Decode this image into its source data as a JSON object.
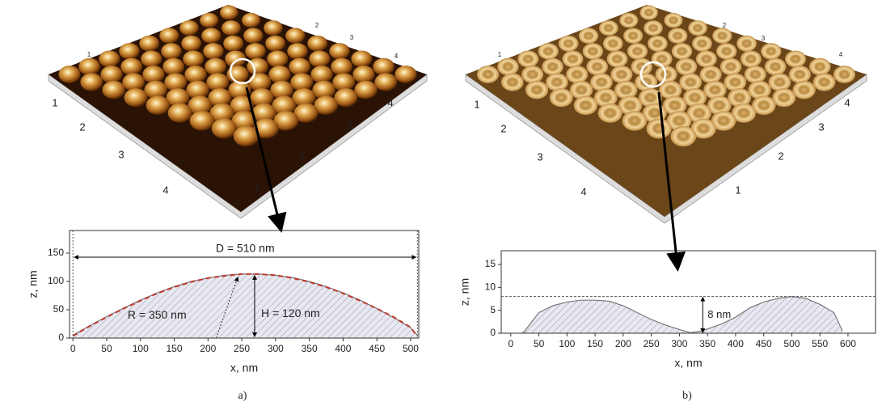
{
  "chart_data": [
    {
      "type": "line",
      "panel_label": "a)",
      "xlabel": "x, nm",
      "ylabel": "z, nm",
      "x": [
        0,
        25,
        50,
        75,
        100,
        125,
        150,
        175,
        200,
        225,
        250,
        275,
        300,
        325,
        350,
        375,
        400,
        425,
        450,
        475,
        500,
        510
      ],
      "series": [
        {
          "color": "#777777",
          "fill": true,
          "dash": false,
          "values": [
            5,
            22,
            38,
            53,
            67,
            80,
            91,
            100,
            106,
            111,
            113,
            113,
            111,
            107,
            100,
            91,
            80,
            67,
            52,
            36,
            18,
            5
          ]
        },
        {
          "color": "#c0392b",
          "fill": false,
          "dash": true,
          "values": [
            4,
            21,
            37,
            52,
            66,
            79,
            90,
            99,
            106,
            110,
            113,
            113,
            111,
            106,
            99,
            90,
            79,
            66,
            52,
            37,
            19,
            3
          ]
        }
      ],
      "xlim": [
        -5,
        512
      ],
      "xticks": [
        0,
        50,
        100,
        150,
        200,
        250,
        300,
        350,
        400,
        450,
        500
      ],
      "ylim": [
        0,
        190
      ],
      "yticks": [
        0,
        50,
        100,
        150
      ],
      "ref_x": [
        0,
        510
      ],
      "annotations": [
        "D = 510 nm",
        "R = 350 nm",
        "H = 120 nm"
      ],
      "surface_labels": {
        "left": [
          "1",
          "2",
          "3",
          "4"
        ],
        "right": [
          "1",
          "2",
          "3",
          "4"
        ],
        "back": [
          "1",
          "2",
          "3",
          "4"
        ]
      }
    },
    {
      "type": "line",
      "panel_label": "b)",
      "xlabel": "x, nm",
      "ylabel": "z, nm",
      "x": [
        20,
        25,
        50,
        75,
        100,
        125,
        150,
        175,
        200,
        225,
        250,
        275,
        300,
        320,
        340,
        375,
        400,
        425,
        450,
        475,
        500,
        525,
        550,
        575,
        590
      ],
      "series": [
        {
          "color": "#777777",
          "fill": true,
          "dash": false,
          "values": [
            0,
            0.5,
            4.5,
            6,
            6.8,
            7.2,
            7.2,
            7,
            6,
            4.5,
            3,
            1.8,
            0.8,
            0.1,
            0.5,
            2,
            3.5,
            5.5,
            6.8,
            7.6,
            8,
            7.6,
            6.3,
            4.5,
            0.5
          ]
        }
      ],
      "xlim": [
        -17,
        649
      ],
      "xticks": [
        0,
        50,
        100,
        150,
        200,
        250,
        300,
        350,
        400,
        450,
        500,
        550,
        600
      ],
      "ylim": [
        0,
        18
      ],
      "yticks": [
        0,
        5,
        10,
        15
      ],
      "ref_y": 8,
      "annotations": [
        "8 nm"
      ],
      "surface_labels": {
        "left": [
          "1",
          "2",
          "3",
          "4"
        ],
        "right": [
          "1",
          "2",
          "3",
          "4"
        ],
        "back": [
          "1",
          "2",
          "3",
          "4"
        ]
      }
    }
  ]
}
